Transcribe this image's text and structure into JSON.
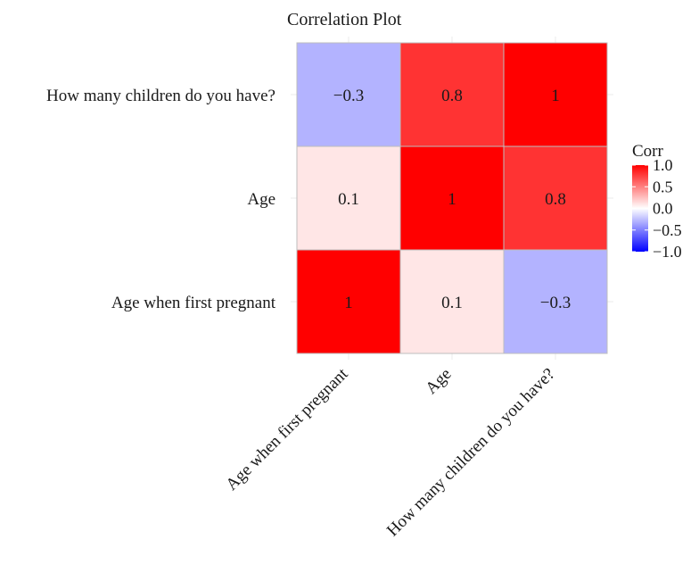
{
  "chart_data": {
    "type": "heatmap",
    "title": "Correlation Plot",
    "x_labels": [
      "Age when first pregnant",
      "Age",
      "How many children do you have?"
    ],
    "y_labels": [
      "Age when first pregnant",
      "Age",
      "How many children do you have?"
    ],
    "values": [
      [
        1,
        0.1,
        -0.3
      ],
      [
        0.1,
        1,
        0.8
      ],
      [
        -0.3,
        0.8,
        1
      ]
    ],
    "cell_labels": [
      [
        "1",
        "0.1",
        "−0.3"
      ],
      [
        "0.1",
        "1",
        "0.8"
      ],
      [
        "−0.3",
        "0.8",
        "1"
      ]
    ],
    "legend": {
      "title": "Corr",
      "min": -1,
      "max": 1,
      "ticks": [
        1.0,
        0.5,
        0.0,
        -0.5,
        -1.0
      ],
      "tick_labels": [
        "1.0",
        "0.5",
        "0.0",
        "−0.5",
        "−1.0"
      ],
      "low_color": "#0000ff",
      "mid_color": "#ffffff",
      "high_color": "#ff0000",
      "placement": "right"
    }
  }
}
